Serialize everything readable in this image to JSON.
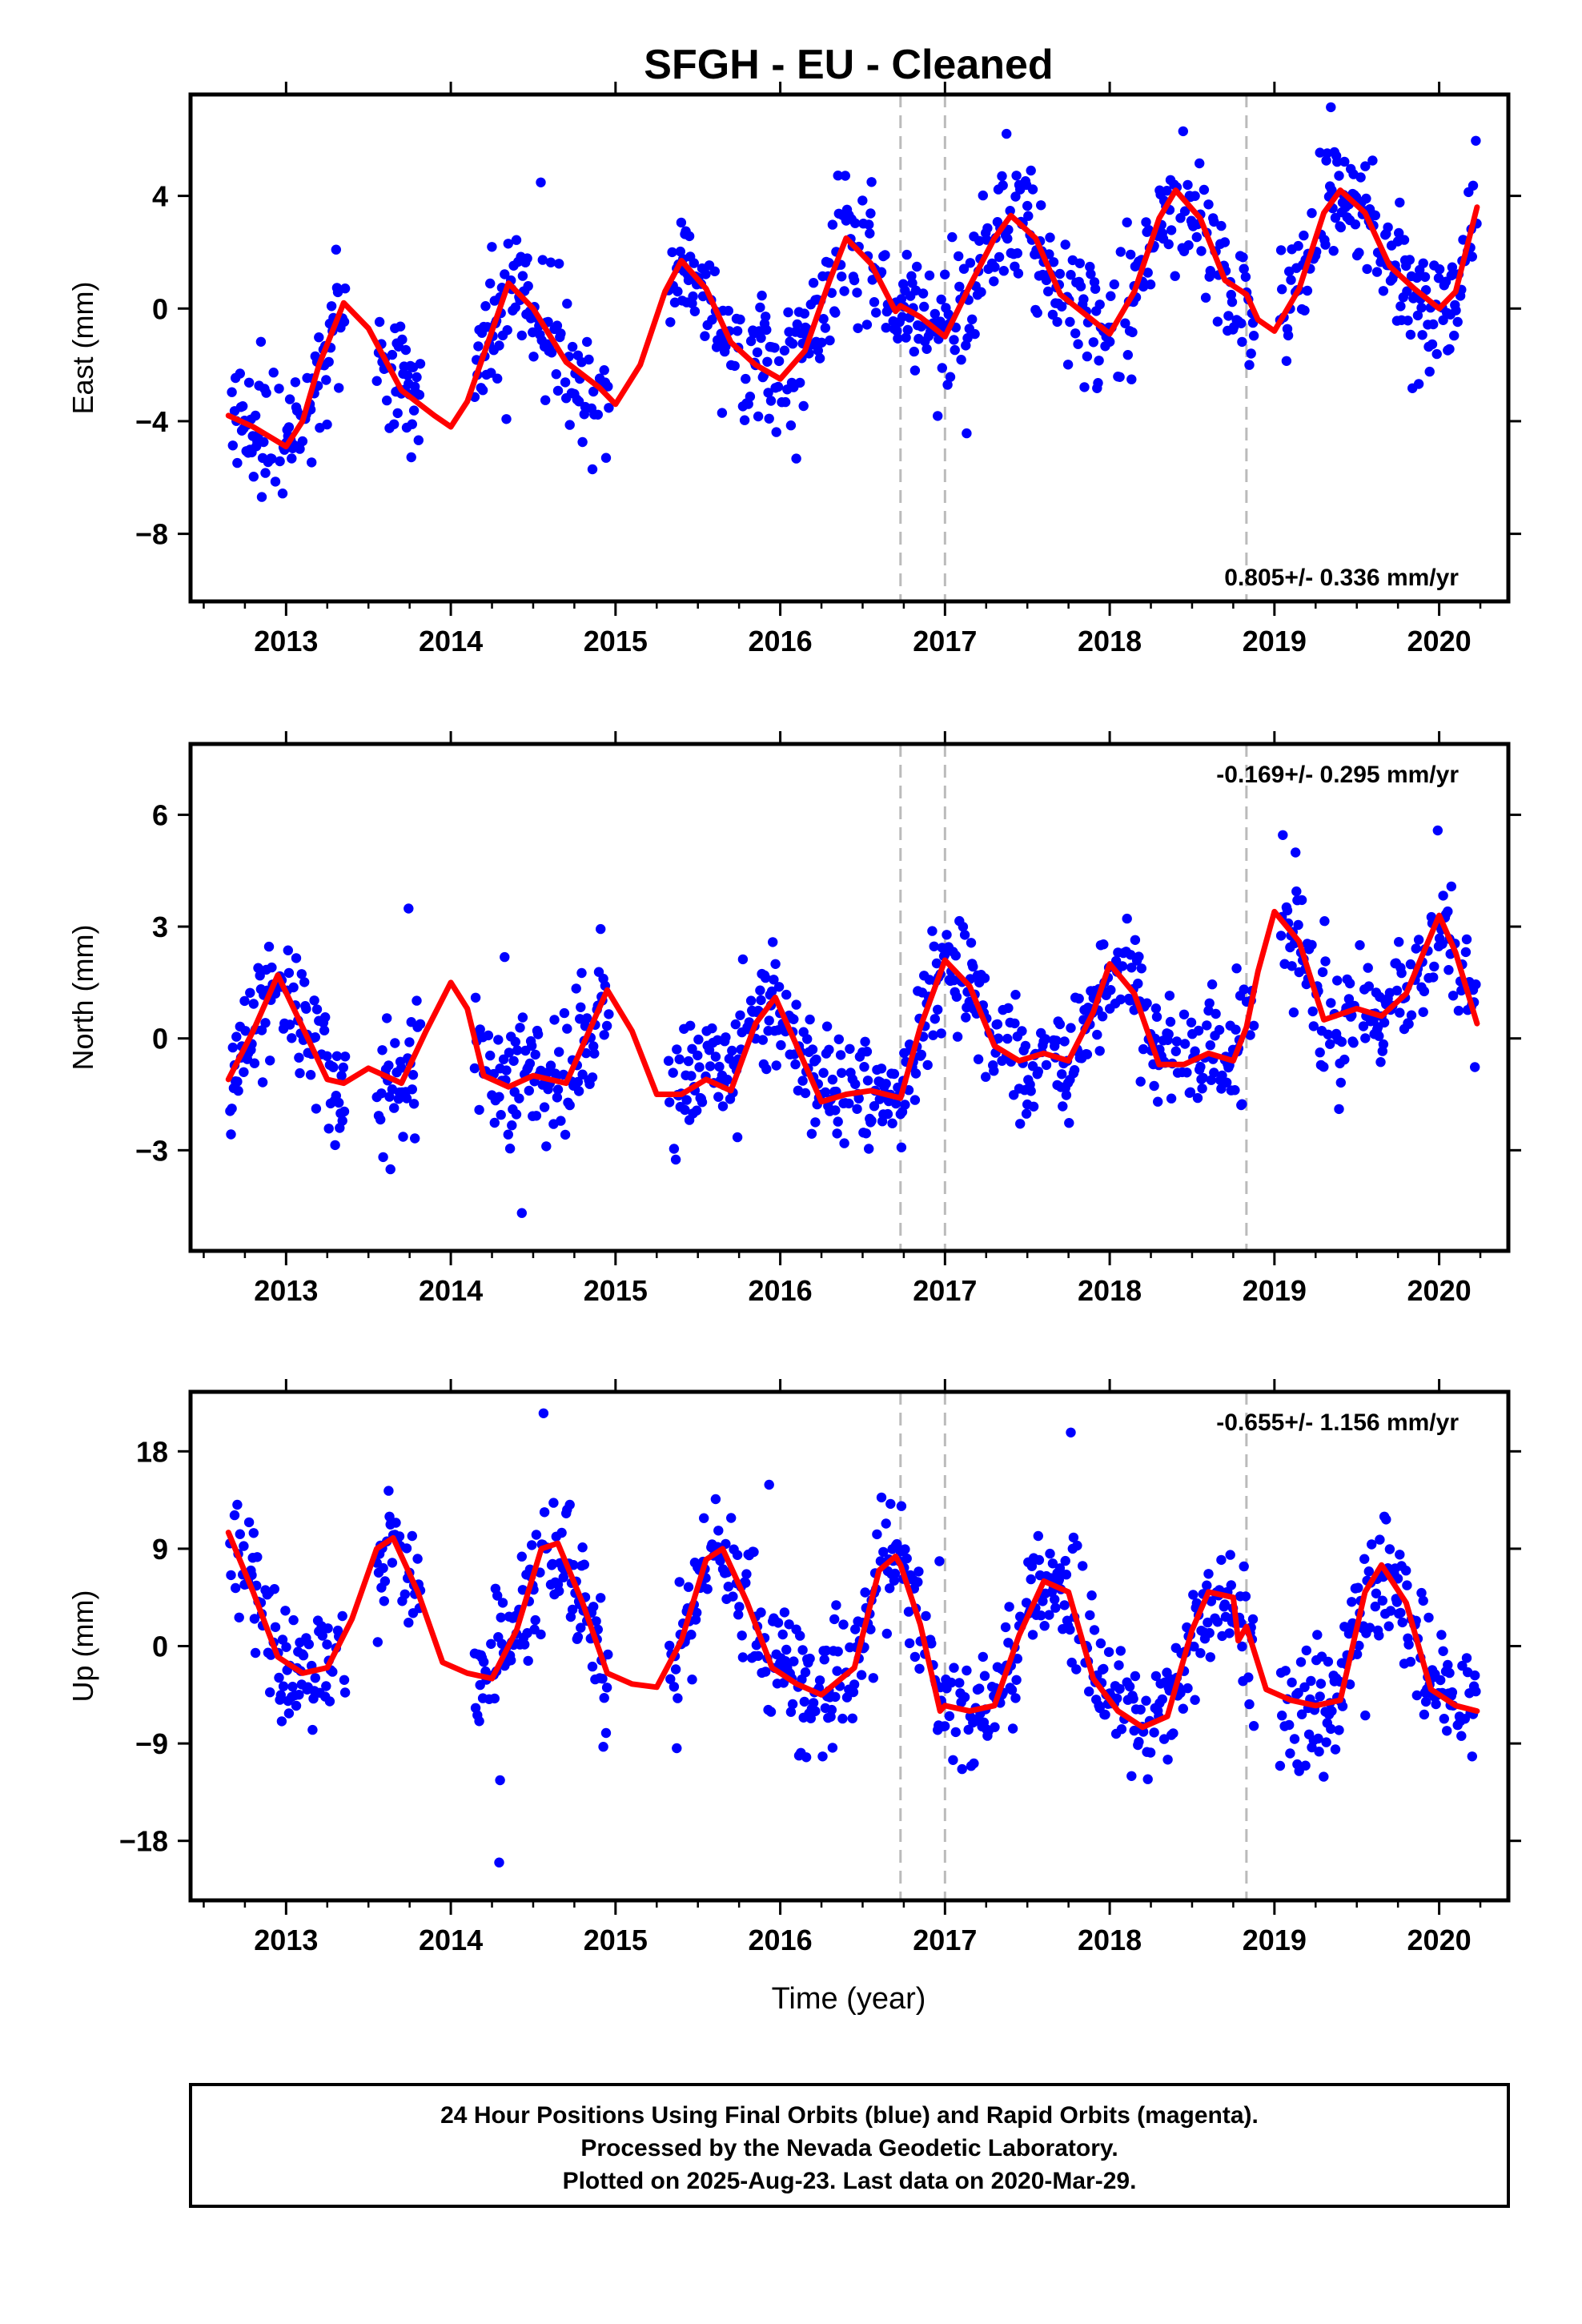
{
  "title": "SFGH  - EU - Cleaned",
  "xlabel": "Time (year)",
  "footer": {
    "line1": "24 Hour Positions Using Final Orbits (blue) and Rapid Orbits (magenta).",
    "line2": "Processed by the Nevada Geodetic Laboratory.",
    "line3": "Plotted on 2025-Aug-23. Last data on 2020-Mar-29."
  },
  "colors": {
    "data": "#0000ff",
    "model": "#ff0000",
    "steps": "#bbbbbb",
    "frame": "#000000"
  },
  "chart_data": [
    {
      "type": "scatter",
      "panel": "east",
      "ylabel": "East (mm)",
      "rate": "0.805+/- 0.336 mm/yr",
      "rate_position": "bottom-right",
      "xlim": [
        2012.42,
        2020.42
      ],
      "ylim": [
        -10.4,
        7.6
      ],
      "yticks": [
        4,
        0,
        -4,
        -8
      ],
      "ytick_labels": [
        "4",
        "0",
        "−4",
        "−8"
      ],
      "xticks": [
        2013,
        2014,
        2015,
        2016,
        2017,
        2018,
        2019,
        2020
      ],
      "xtick_labels": [
        "2013",
        "2014",
        "2015",
        "2016",
        "2017",
        "2018",
        "2019",
        "2020"
      ],
      "step_lines": [
        2016.73,
        2017.0,
        2018.83
      ],
      "model_curve": {
        "x": [
          2012.65,
          2012.8,
          2013.0,
          2013.1,
          2013.2,
          2013.35,
          2013.5,
          2013.7,
          2013.9,
          2014.0,
          2014.1,
          2014.25,
          2014.35,
          2014.5,
          2014.7,
          2014.9,
          2015.0,
          2015.15,
          2015.3,
          2015.4,
          2015.55,
          2015.7,
          2015.85,
          2016.0,
          2016.15,
          2016.3,
          2016.4,
          2016.55,
          2016.7,
          2016.73,
          2016.85,
          2017.0,
          2017.15,
          2017.3,
          2017.4,
          2017.55,
          2017.7,
          2017.85,
          2018.0,
          2018.15,
          2018.3,
          2018.4,
          2018.55,
          2018.7,
          2018.83,
          2018.9,
          2019.0,
          2019.15,
          2019.3,
          2019.4,
          2019.55,
          2019.7,
          2019.85,
          2020.0,
          2020.1,
          2020.23
        ],
        "y": [
          -3.8,
          -4.2,
          -4.9,
          -4.0,
          -2.0,
          0.2,
          -0.7,
          -2.9,
          -3.8,
          -4.2,
          -3.3,
          -0.8,
          0.9,
          0.0,
          -1.9,
          -2.8,
          -3.4,
          -2.0,
          0.6,
          1.7,
          0.7,
          -1.2,
          -2.0,
          -2.5,
          -1.5,
          1.0,
          2.5,
          1.6,
          -0.1,
          0.1,
          -0.3,
          -1.0,
          0.8,
          2.5,
          3.3,
          2.5,
          0.5,
          -0.2,
          -0.9,
          0.6,
          3.2,
          4.2,
          3.2,
          1.0,
          0.5,
          -0.4,
          -0.8,
          0.7,
          3.4,
          4.2,
          3.4,
          1.5,
          0.7,
          0.0,
          0.6,
          3.6
        ]
      }
    },
    {
      "type": "scatter",
      "panel": "north",
      "ylabel": "North (mm)",
      "rate": "-0.169+/- 0.295 mm/yr",
      "rate_position": "top-right",
      "xlim": [
        2012.42,
        2020.42
      ],
      "ylim": [
        -5.7,
        7.9
      ],
      "yticks": [
        6,
        3,
        0,
        -3
      ],
      "ytick_labels": [
        "6",
        "3",
        "0",
        "−3"
      ],
      "xticks": [
        2013,
        2014,
        2015,
        2016,
        2017,
        2018,
        2019,
        2020
      ],
      "xtick_labels": [
        "2013",
        "2014",
        "2015",
        "2016",
        "2017",
        "2018",
        "2019",
        "2020"
      ],
      "step_lines": [
        2016.73,
        2017.0,
        2018.83
      ],
      "model_curve": {
        "x": [
          2012.65,
          2012.8,
          2012.95,
          2013.1,
          2013.25,
          2013.35,
          2013.5,
          2013.7,
          2013.85,
          2014.0,
          2014.1,
          2014.2,
          2014.35,
          2014.5,
          2014.7,
          2014.85,
          2014.95,
          2015.1,
          2015.25,
          2015.4,
          2015.55,
          2015.7,
          2015.85,
          2015.97,
          2016.1,
          2016.25,
          2016.4,
          2016.55,
          2016.73,
          2016.85,
          2017.0,
          2017.15,
          2017.3,
          2017.45,
          2017.6,
          2017.75,
          2017.9,
          2018.0,
          2018.15,
          2018.3,
          2018.45,
          2018.6,
          2018.75,
          2018.83,
          2018.9,
          2019.0,
          2019.15,
          2019.3,
          2019.5,
          2019.65,
          2019.8,
          2020.0,
          2020.1,
          2020.23
        ],
        "y": [
          -1.1,
          0.2,
          1.7,
          0.3,
          -1.1,
          -1.2,
          -0.8,
          -1.2,
          0.2,
          1.5,
          0.8,
          -1.0,
          -1.3,
          -1.0,
          -1.2,
          0.3,
          1.3,
          0.2,
          -1.5,
          -1.5,
          -1.1,
          -1.4,
          0.4,
          1.1,
          -0.2,
          -1.7,
          -1.5,
          -1.4,
          -1.6,
          0.3,
          2.1,
          1.4,
          -0.2,
          -0.6,
          -0.4,
          -0.6,
          0.7,
          2.0,
          1.2,
          -0.7,
          -0.7,
          -0.4,
          -0.6,
          0.3,
          1.8,
          3.4,
          2.6,
          0.5,
          0.8,
          0.6,
          1.2,
          3.3,
          2.3,
          0.4
        ]
      }
    },
    {
      "type": "scatter",
      "panel": "up",
      "ylabel": "Up (mm)",
      "rate": "-0.655+/- 1.156 mm/yr",
      "rate_position": "top-right",
      "xlim": [
        2012.42,
        2020.42
      ],
      "ylim": [
        -23.5,
        23.5
      ],
      "yticks": [
        18,
        9,
        0,
        -9,
        -18
      ],
      "ytick_labels": [
        "18",
        "9",
        "0",
        "−9",
        "−18"
      ],
      "xticks": [
        2013,
        2014,
        2015,
        2016,
        2017,
        2018,
        2019,
        2020
      ],
      "xtick_labels": [
        "2013",
        "2014",
        "2015",
        "2016",
        "2017",
        "2018",
        "2019",
        "2020"
      ],
      "step_lines": [
        2016.73,
        2017.0,
        2018.83
      ],
      "model_curve": {
        "x": [
          2012.65,
          2012.8,
          2012.95,
          2013.1,
          2013.25,
          2013.4,
          2013.55,
          2013.65,
          2013.8,
          2013.95,
          2014.1,
          2014.25,
          2014.4,
          2014.55,
          2014.65,
          2014.8,
          2014.95,
          2015.1,
          2015.25,
          2015.4,
          2015.55,
          2015.65,
          2015.8,
          2015.95,
          2016.1,
          2016.25,
          2016.45,
          2016.6,
          2016.7,
          2016.73,
          2016.85,
          2016.97,
          2017.0,
          2017.15,
          2017.3,
          2017.45,
          2017.6,
          2017.75,
          2017.9,
          2018.05,
          2018.2,
          2018.35,
          2018.5,
          2018.6,
          2018.75,
          2018.78,
          2018.83,
          2018.95,
          2019.1,
          2019.25,
          2019.4,
          2019.55,
          2019.65,
          2019.8,
          2019.95,
          2020.1,
          2020.23
        ],
        "y": [
          10.5,
          5.0,
          -1.0,
          -2.5,
          -2.0,
          2.5,
          9.0,
          10.0,
          5.0,
          -1.5,
          -2.5,
          -3.0,
          1.5,
          9.0,
          9.5,
          4.0,
          -2.5,
          -3.5,
          -3.8,
          0.5,
          8.0,
          9.0,
          4.0,
          -2.0,
          -3.5,
          -4.5,
          -2.0,
          7.0,
          8.3,
          7.5,
          2.0,
          -6.0,
          -5.5,
          -6.0,
          -5.5,
          1.0,
          6.0,
          5.0,
          -3.0,
          -6.0,
          -7.5,
          -6.5,
          1.5,
          5.0,
          4.5,
          0.5,
          1.8,
          -4.0,
          -5.0,
          -5.5,
          -5.0,
          5.0,
          7.5,
          4.0,
          -4.0,
          -5.5,
          -6.0
        ]
      }
    }
  ]
}
